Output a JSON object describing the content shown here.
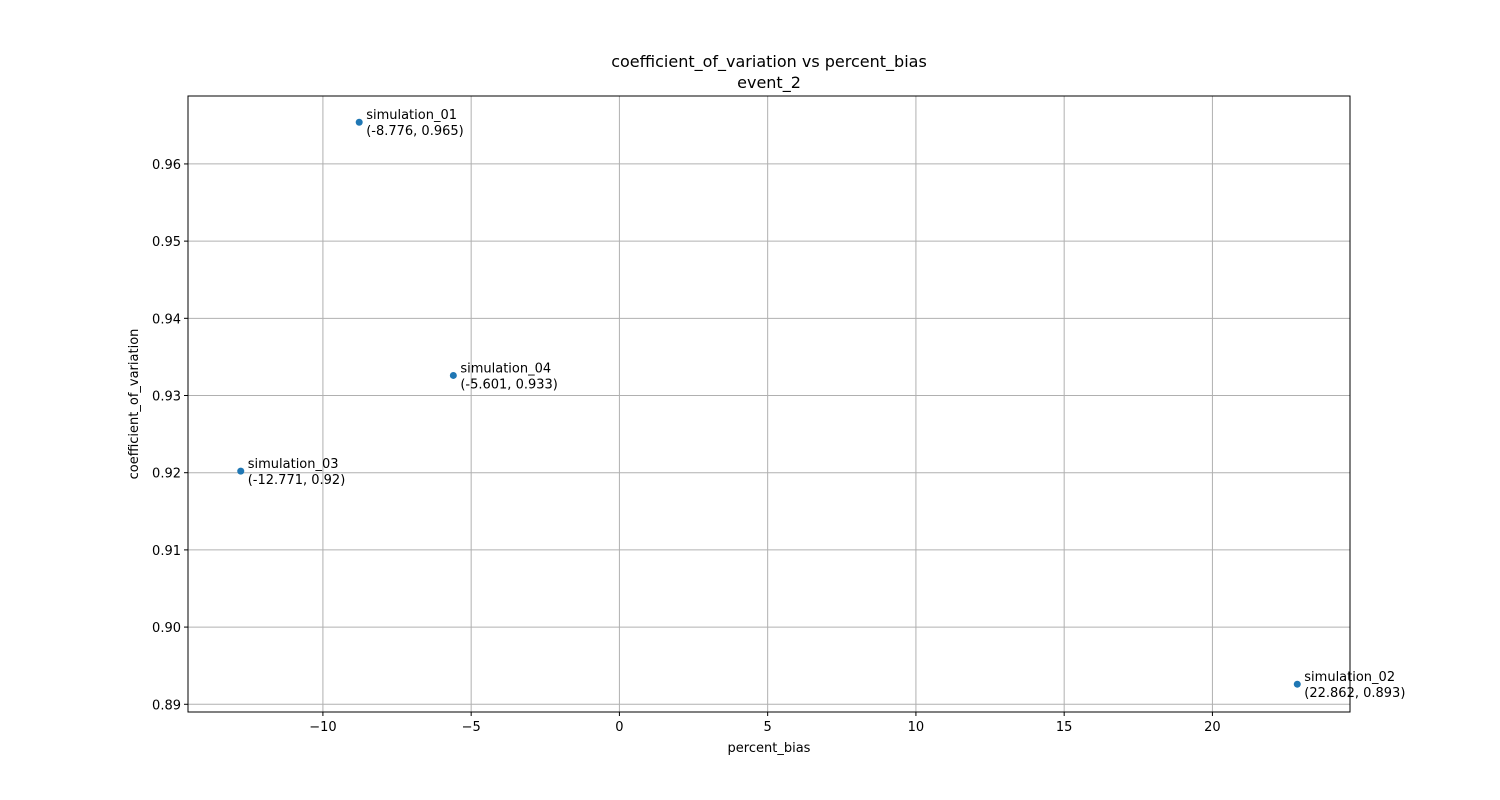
{
  "chart_data": {
    "type": "scatter",
    "title": "coefficient_of_variation vs percent_bias",
    "subtitle": "event_2",
    "xlabel": "percent_bias",
    "ylabel": "coefficient_of_variation",
    "xlim": [
      -14.55,
      24.64
    ],
    "ylim": [
      0.889,
      0.9688
    ],
    "xticks": [
      -10,
      -5,
      0,
      5,
      10,
      15,
      20
    ],
    "xtick_labels": [
      "−10",
      "−5",
      "0",
      "5",
      "10",
      "15",
      "20"
    ],
    "yticks": [
      0.89,
      0.9,
      0.91,
      0.92,
      0.93,
      0.94,
      0.95,
      0.96
    ],
    "ytick_labels": [
      "0.89",
      "0.90",
      "0.91",
      "0.92",
      "0.93",
      "0.94",
      "0.95",
      "0.96"
    ],
    "grid": true,
    "marker_color": "#1f77b4",
    "points": [
      {
        "name": "simulation_01",
        "x": -8.776,
        "y": 0.9654,
        "coord_label": "(-8.776, 0.965)"
      },
      {
        "name": "simulation_02",
        "x": 22.862,
        "y": 0.8926,
        "coord_label": "(22.862, 0.893)"
      },
      {
        "name": "simulation_03",
        "x": -12.771,
        "y": 0.9202,
        "coord_label": "(-12.771, 0.92)"
      },
      {
        "name": "simulation_04",
        "x": -5.601,
        "y": 0.9326,
        "coord_label": "(-5.601, 0.933)"
      }
    ]
  }
}
